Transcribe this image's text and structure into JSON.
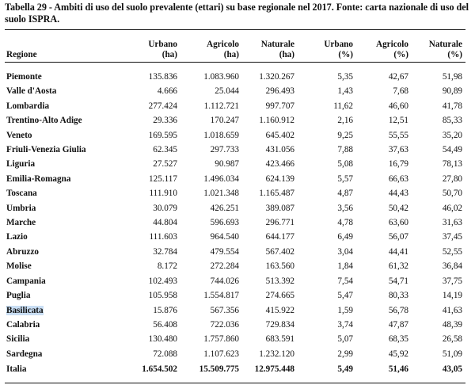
{
  "caption": "Tabella 29 - Ambiti di uso del suolo prevalente (ettari) su base regionale nel 2017. Fonte: carta nazionale di uso del suolo ISPRA.",
  "headers": {
    "regione": "Regione",
    "urbano_ha": [
      "Urbano",
      "(ha)"
    ],
    "agricolo_ha": [
      "Agricolo",
      "(ha)"
    ],
    "naturale_ha": [
      "Naturale",
      "(ha)"
    ],
    "urbano_pct": [
      "Urbano",
      "(%)"
    ],
    "agricolo_pct": [
      "Agricolo",
      "(%)"
    ],
    "naturale_pct": [
      "Naturale",
      "(%)"
    ]
  },
  "rows": [
    [
      "Piemonte",
      "135.836",
      "1.083.960",
      "1.320.267",
      "5,35",
      "42,67",
      "51,98"
    ],
    [
      "Valle d'Aosta",
      "4.666",
      "25.044",
      "296.493",
      "1,43",
      "7,68",
      "90,89"
    ],
    [
      "Lombardia",
      "277.424",
      "1.112.721",
      "997.707",
      "11,62",
      "46,60",
      "41,78"
    ],
    [
      "Trentino-Alto Adige",
      "29.336",
      "170.247",
      "1.160.912",
      "2,16",
      "12,51",
      "85,33"
    ],
    [
      "Veneto",
      "169.595",
      "1.018.659",
      "645.402",
      "9,25",
      "55,55",
      "35,20"
    ],
    [
      "Friuli-Venezia Giulia",
      "62.345",
      "297.733",
      "431.056",
      "7,88",
      "37,63",
      "54,49"
    ],
    [
      "Liguria",
      "27.527",
      "90.987",
      "423.466",
      "5,08",
      "16,79",
      "78,13"
    ],
    [
      "Emilia-Romagna",
      "125.117",
      "1.496.034",
      "624.139",
      "5,57",
      "66,63",
      "27,80"
    ],
    [
      "Toscana",
      "111.910",
      "1.021.348",
      "1.165.487",
      "4,87",
      "44,43",
      "50,70"
    ],
    [
      "Umbria",
      "30.079",
      "426.251",
      "389.087",
      "3,56",
      "50,42",
      "46,02"
    ],
    [
      "Marche",
      "44.804",
      "596.693",
      "296.771",
      "4,78",
      "63,60",
      "31,63"
    ],
    [
      "Lazio",
      "111.603",
      "964.540",
      "644.177",
      "6,49",
      "56,07",
      "37,45"
    ],
    [
      "Abruzzo",
      "32.784",
      "479.554",
      "567.402",
      "3,04",
      "44,41",
      "52,55"
    ],
    [
      "Molise",
      "8.172",
      "272.284",
      "163.560",
      "1,84",
      "61,32",
      "36,84"
    ],
    [
      "Campania",
      "102.493",
      "744.026",
      "513.392",
      "7,54",
      "54,71",
      "37,75"
    ],
    [
      "Puglia",
      "105.958",
      "1.554.817",
      "274.665",
      "5,47",
      "80,33",
      "14,19"
    ],
    [
      "Basilicata",
      "15.876",
      "567.356",
      "415.922",
      "1,59",
      "56,78",
      "41,63"
    ],
    [
      "Calabria",
      "56.408",
      "722.036",
      "729.834",
      "3,74",
      "47,87",
      "48,39"
    ],
    [
      "Sicilia",
      "130.480",
      "1.757.860",
      "683.591",
      "5,07",
      "68,35",
      "26,58"
    ],
    [
      "Sardegna",
      "72.088",
      "1.107.623",
      "1.232.120",
      "2,99",
      "45,92",
      "51,09"
    ]
  ],
  "total": [
    "Italia",
    "1.654.502",
    "15.509.775",
    "12.975.448",
    "5,49",
    "51,46",
    "43,05"
  ],
  "highlighted_region": "Basilicata",
  "highlight_color": "#c9def4"
}
